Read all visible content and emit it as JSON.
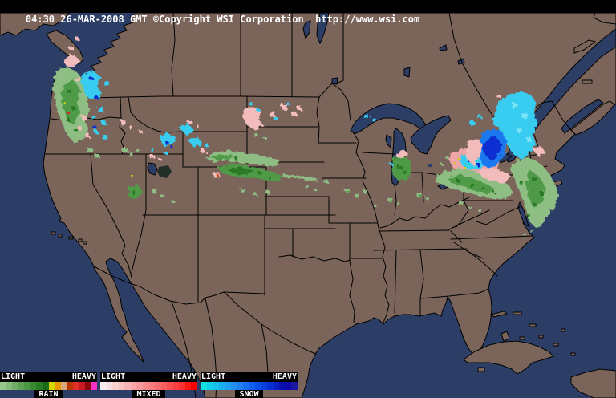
{
  "header": {
    "text": "04:30 26-MAR-2008 GMT ©Copyright WSI Corporation  http://www.wsi.com"
  },
  "legend": {
    "groups": [
      {
        "left_label": "LIGHT",
        "right_label": "HEAVY",
        "name": "RAIN",
        "colors": [
          "#96c58c",
          "#85bb7a",
          "#6fae64",
          "#5da252",
          "#4a9642",
          "#388a32",
          "#287d24",
          "#1a6b18",
          "#d6d600",
          "#e89800",
          "#d8a878",
          "#b83800",
          "#e03028",
          "#c81820",
          "#8c0810",
          "#f830c8"
        ]
      },
      {
        "left_label": "LIGHT",
        "right_label": "HEAVY",
        "name": "MIXED",
        "colors": [
          "#f8ecec",
          "#f8dede",
          "#f8d0d0",
          "#f8c2c2",
          "#f8b4b4",
          "#f8a6a6",
          "#f89898",
          "#f88a8a",
          "#f87c7c",
          "#f86e6e",
          "#f86060",
          "#f85050",
          "#f84040",
          "#f83030",
          "#f81810",
          "#f80000"
        ]
      },
      {
        "left_label": "LIGHT",
        "right_label": "HEAVY",
        "name": "SNOW",
        "colors": [
          "#10e0e0",
          "#10d0e8",
          "#18c0f0",
          "#18b0f0",
          "#20a0f0",
          "#2090f0",
          "#2080f0",
          "#1870f0",
          "#1060f0",
          "#0850e8",
          "#0840e0",
          "#0830d0",
          "#0820c0",
          "#0810b0",
          "#1008a8",
          "#1818a0"
        ]
      }
    ]
  },
  "map": {
    "colors": {
      "water": "#2d3e66",
      "land": "#7b655a",
      "border": "#000000"
    },
    "precipitation_regions": [
      {
        "area": "Pacific Northwest coast and Cascades (WA/OR)",
        "types": [
          "rain",
          "mixed",
          "snow"
        ],
        "intensity": "light to moderate"
      },
      {
        "area": "Northern Rockies and Great Basin (ID/UT/WY/CO)",
        "types": [
          "snow",
          "mixed",
          "rain"
        ],
        "intensity": "light, scattered"
      },
      {
        "area": "Montana / North Dakota border",
        "types": [
          "mixed",
          "snow"
        ],
        "intensity": "light"
      },
      {
        "area": "Nebraska / Wyoming plains band",
        "types": [
          "rain"
        ],
        "intensity": "light to moderate"
      },
      {
        "area": "Scattered central plains and Midwest",
        "types": [
          "rain"
        ],
        "intensity": "very light"
      },
      {
        "area": "Central Michigan",
        "types": [
          "rain",
          "mixed"
        ],
        "intensity": "light"
      },
      {
        "area": "Western New York / Lake Erie shore",
        "types": [
          "mixed",
          "snow",
          "rain"
        ],
        "intensity": "light to moderate"
      },
      {
        "area": "Ohio Valley / Pennsylvania",
        "types": [
          "rain"
        ],
        "intensity": "light to moderate"
      },
      {
        "area": "Northern New England and Adirondacks",
        "types": [
          "snow",
          "mixed"
        ],
        "intensity": "moderate to heavy"
      },
      {
        "area": "Southern New England coast and Mid-Atlantic",
        "types": [
          "rain"
        ],
        "intensity": "light to moderate"
      }
    ]
  }
}
